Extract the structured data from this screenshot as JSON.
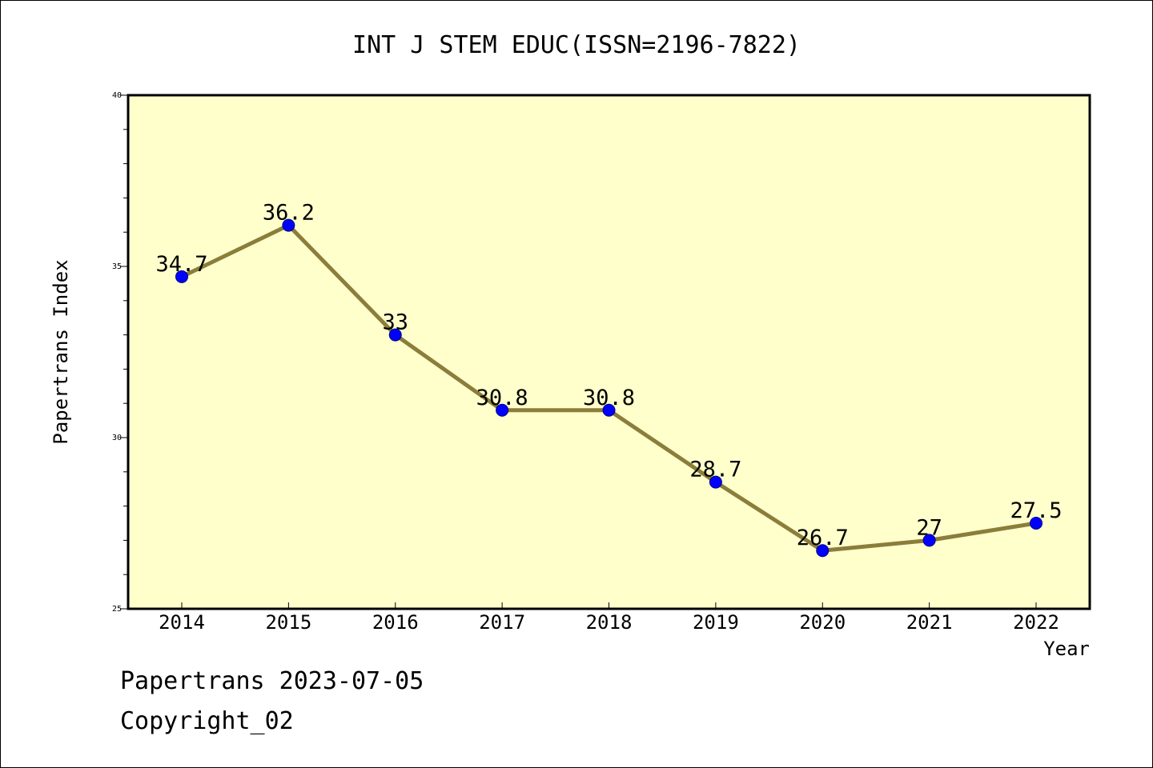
{
  "colors": {
    "plot_background": "#ffffcc",
    "line": "#8b7d3a",
    "marker": "#0000ff",
    "axis": "#000000",
    "text": "#000000"
  },
  "footer": {
    "date_text": "Papertrans 2023-07-05",
    "copyright_text": "Copyright_02"
  },
  "chart_data": {
    "type": "line",
    "title": "INT J STEM EDUC(ISSN=2196-7822)",
    "xlabel": "Year",
    "ylabel": "Papertrans Index",
    "categories": [
      "2014",
      "2015",
      "2016",
      "2017",
      "2018",
      "2019",
      "2020",
      "2021",
      "2022"
    ],
    "series": [
      {
        "values": [
          34.7,
          36.2,
          33,
          30.8,
          30.8,
          28.7,
          26.7,
          27,
          27.5
        ],
        "labels": [
          "34.7",
          "36.2",
          "33",
          "30.8",
          "30.8",
          "28.7",
          "26.7",
          "27",
          "27.5"
        ]
      }
    ],
    "ylim": [
      25,
      40
    ],
    "yticks": [
      "25",
      "30",
      "35",
      "40"
    ],
    "grid": false,
    "legend": "none"
  }
}
